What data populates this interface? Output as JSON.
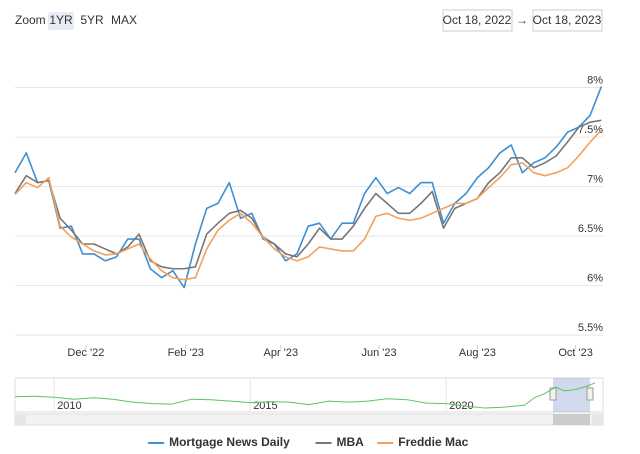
{
  "chart_data": [
    {
      "type": "line",
      "zoom_label": "Zoom",
      "zoom_buttons": [
        "1YR",
        "5YR",
        "MAX"
      ],
      "range_from": "Oct 18, 2022",
      "range_separator": "→",
      "range_to": "Oct 18, 2023",
      "x": [
        "2022-10-18",
        "2022-10-25",
        "2022-11-01",
        "2022-11-08",
        "2022-11-15",
        "2022-11-22",
        "2022-11-29",
        "2022-12-06",
        "2022-12-13",
        "2022-12-20",
        "2022-12-27",
        "2023-01-03",
        "2023-01-10",
        "2023-01-17",
        "2023-01-24",
        "2023-01-31",
        "2023-02-07",
        "2023-02-14",
        "2023-02-21",
        "2023-02-28",
        "2023-03-07",
        "2023-03-14",
        "2023-03-21",
        "2023-03-28",
        "2023-04-04",
        "2023-04-11",
        "2023-04-18",
        "2023-04-25",
        "2023-05-02",
        "2023-05-09",
        "2023-05-16",
        "2023-05-23",
        "2023-05-30",
        "2023-06-06",
        "2023-06-13",
        "2023-06-20",
        "2023-06-27",
        "2023-07-04",
        "2023-07-11",
        "2023-07-18",
        "2023-07-25",
        "2023-08-01",
        "2023-08-08",
        "2023-08-15",
        "2023-08-22",
        "2023-08-29",
        "2023-09-05",
        "2023-09-12",
        "2023-09-19",
        "2023-09-26",
        "2023-10-03",
        "2023-10-10",
        "2023-10-17"
      ],
      "series": [
        {
          "name": "Mortgage News Daily",
          "color": "#3d8fd6",
          "values": [
            7.14,
            7.34,
            7.04,
            7.06,
            6.58,
            6.6,
            6.32,
            6.32,
            6.25,
            6.29,
            6.47,
            6.47,
            6.17,
            6.08,
            6.15,
            5.98,
            6.42,
            6.78,
            6.83,
            7.04,
            6.68,
            6.73,
            6.47,
            6.42,
            6.25,
            6.32,
            6.6,
            6.63,
            6.47,
            6.63,
            6.63,
            6.93,
            7.09,
            6.93,
            6.99,
            6.93,
            7.04,
            7.04,
            6.63,
            6.83,
            6.93,
            7.09,
            7.19,
            7.34,
            7.42,
            7.14,
            7.24,
            7.29,
            7.4,
            7.55,
            7.6,
            7.72,
            8.01
          ]
        },
        {
          "name": "MBA",
          "color": "#777777",
          "values": [
            6.93,
            7.11,
            7.04,
            7.06,
            6.68,
            6.56,
            6.42,
            6.42,
            6.37,
            6.32,
            6.39,
            6.52,
            6.25,
            6.19,
            6.17,
            6.17,
            6.19,
            6.52,
            6.63,
            6.73,
            6.76,
            6.68,
            6.49,
            6.42,
            6.32,
            6.29,
            6.42,
            6.58,
            6.47,
            6.47,
            6.6,
            6.78,
            6.93,
            6.83,
            6.73,
            6.73,
            6.83,
            6.95,
            6.58,
            6.78,
            6.83,
            6.88,
            7.04,
            7.14,
            7.29,
            7.29,
            7.19,
            7.24,
            7.31,
            7.45,
            7.6,
            7.65,
            7.67
          ]
        },
        {
          "name": "Freddie Mac",
          "color": "#f4a15a",
          "values": [
            6.92,
            7.04,
            6.99,
            7.09,
            6.6,
            6.49,
            6.42,
            6.35,
            6.31,
            6.32,
            6.37,
            6.42,
            6.27,
            6.15,
            6.08,
            6.06,
            6.08,
            6.37,
            6.56,
            6.66,
            6.73,
            6.63,
            6.49,
            6.37,
            6.29,
            6.25,
            6.29,
            6.39,
            6.37,
            6.35,
            6.35,
            6.47,
            6.7,
            6.73,
            6.68,
            6.66,
            6.68,
            6.73,
            6.78,
            6.83,
            6.83,
            6.88,
            6.99,
            7.09,
            7.22,
            7.24,
            7.14,
            7.11,
            7.14,
            7.19,
            7.31,
            7.45,
            7.57
          ]
        }
      ],
      "xlim": [
        "2022-10-18",
        "2023-10-18"
      ],
      "xticks": [
        {
          "value": "2022-12-01",
          "label": "Dec '22"
        },
        {
          "value": "2023-02-01",
          "label": "Feb '23"
        },
        {
          "value": "2023-04-01",
          "label": "Apr '23"
        },
        {
          "value": "2023-06-01",
          "label": "Jun '23"
        },
        {
          "value": "2023-08-01",
          "label": "Aug '23"
        },
        {
          "value": "2023-10-01",
          "label": "Oct '23"
        }
      ],
      "ylim": [
        5.4,
        8.45
      ],
      "yticks": [
        {
          "value": 5.5,
          "label": "5.5%"
        },
        {
          "value": 6,
          "label": "6%"
        },
        {
          "value": 6.5,
          "label": "6.5%"
        },
        {
          "value": 7,
          "label": "7%"
        },
        {
          "value": 7.5,
          "label": "7.5%"
        },
        {
          "value": 8,
          "label": "8%"
        }
      ],
      "grid": true,
      "legend": "bottom"
    },
    {
      "type": "line",
      "x": [
        2009,
        2009.5,
        2010,
        2010.5,
        2011,
        2011.5,
        2012,
        2012.5,
        2013,
        2013.5,
        2014,
        2014.5,
        2015,
        2015.5,
        2016,
        2016.5,
        2017,
        2017.5,
        2018,
        2018.5,
        2019,
        2019.5,
        2020,
        2020.5,
        2021,
        2021.5,
        2022,
        2022.25,
        2022.5,
        2022.8,
        2023,
        2023.25,
        2023.5,
        2023.8
      ],
      "series": [
        {
          "color": "#5cc55c",
          "values": [
            5.1,
            5.2,
            5.0,
            4.6,
            4.9,
            4.6,
            4.0,
            3.7,
            3.6,
            4.6,
            4.5,
            4.2,
            3.9,
            4.1,
            4.0,
            3.5,
            4.2,
            4.0,
            4.2,
            4.7,
            4.5,
            3.8,
            3.7,
            3.2,
            2.8,
            3.0,
            3.4,
            4.9,
            5.7,
            7.1,
            6.3,
            6.5,
            7.0,
            7.9
          ]
        }
      ],
      "xlim": [
        2009,
        2024
      ],
      "xticks": [
        2010,
        2015,
        2020
      ],
      "ylim": [
        2,
        8.5
      ],
      "grid": true
    }
  ]
}
